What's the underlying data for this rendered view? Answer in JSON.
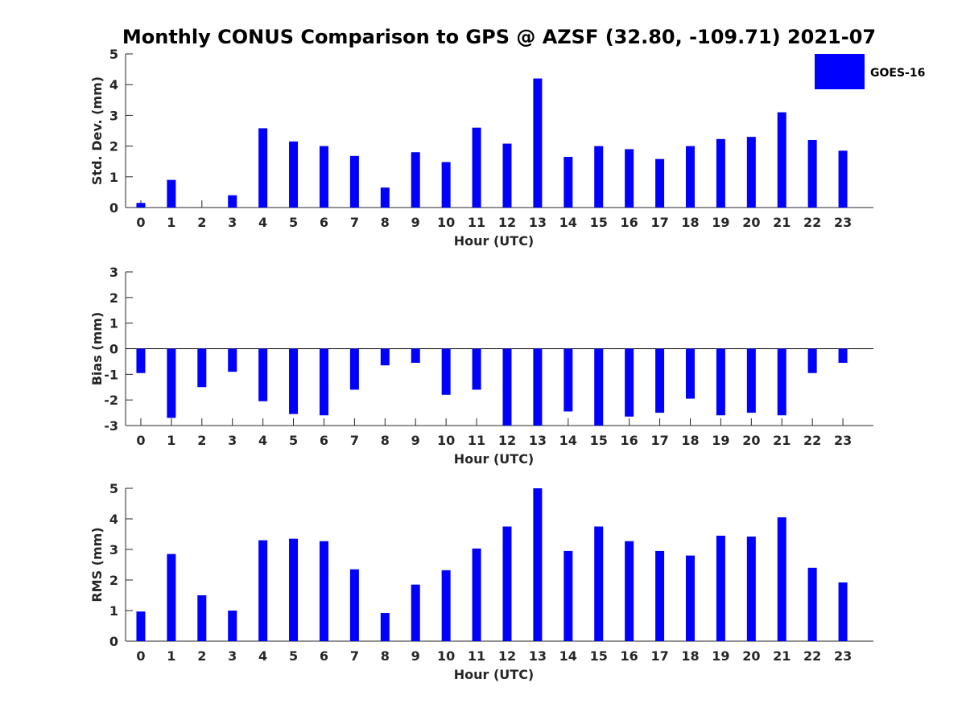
{
  "title": "Monthly CONUS Comparison to GPS @ AZSF (32.80, -109.71) 2021-07",
  "colors": {
    "bar": "#0000ff",
    "axis": "#262626",
    "background": "#ffffff"
  },
  "legend": {
    "label": "GOES-16",
    "placement": "top-right"
  },
  "chart_data": [
    {
      "type": "bar",
      "xlabel": "Hour (UTC)",
      "ylabel": "Std. Dev. (mm)",
      "ylim": [
        0,
        5
      ],
      "yticks": [
        0,
        1,
        2,
        3,
        4,
        5
      ],
      "x": [
        0,
        1,
        2,
        3,
        4,
        5,
        6,
        7,
        8,
        9,
        10,
        11,
        12,
        13,
        14,
        15,
        16,
        17,
        18,
        19,
        20,
        21,
        22,
        23
      ],
      "series": [
        {
          "name": "GOES-16",
          "values": [
            0.15,
            0.9,
            0,
            0.4,
            2.58,
            2.15,
            2.0,
            1.68,
            0.65,
            1.8,
            1.48,
            2.6,
            2.08,
            4.2,
            1.65,
            2.0,
            1.9,
            1.58,
            2.0,
            2.23,
            2.3,
            3.1,
            2.2,
            1.85
          ]
        }
      ]
    },
    {
      "type": "bar",
      "xlabel": "Hour (UTC)",
      "ylabel": "Bias (mm)",
      "ylim": [
        -3,
        3
      ],
      "yticks": [
        -3,
        -2,
        -1,
        0,
        1,
        2,
        3
      ],
      "x": [
        0,
        1,
        2,
        3,
        4,
        5,
        6,
        7,
        8,
        9,
        10,
        11,
        12,
        13,
        14,
        15,
        16,
        17,
        18,
        19,
        20,
        21,
        22,
        23
      ],
      "series": [
        {
          "name": "GOES-16",
          "values": [
            -0.95,
            -2.7,
            -1.5,
            -0.9,
            -2.05,
            -2.55,
            -2.6,
            -1.6,
            -0.65,
            -0.55,
            -1.8,
            -1.6,
            -3.0,
            -3.0,
            -2.45,
            -3.0,
            -2.65,
            -2.5,
            -1.95,
            -2.6,
            -2.5,
            -2.6,
            -0.95,
            -0.55
          ]
        }
      ]
    },
    {
      "type": "bar",
      "xlabel": "Hour (UTC)",
      "ylabel": "RMS (mm)",
      "ylim": [
        0,
        5
      ],
      "yticks": [
        0,
        1,
        2,
        3,
        4,
        5
      ],
      "x": [
        0,
        1,
        2,
        3,
        4,
        5,
        6,
        7,
        8,
        9,
        10,
        11,
        12,
        13,
        14,
        15,
        16,
        17,
        18,
        19,
        20,
        21,
        22,
        23
      ],
      "series": [
        {
          "name": "GOES-16",
          "values": [
            0.97,
            2.85,
            1.5,
            1.0,
            3.3,
            3.35,
            3.27,
            2.35,
            0.92,
            1.85,
            2.32,
            3.03,
            3.75,
            5.0,
            2.95,
            3.75,
            3.27,
            2.95,
            2.8,
            3.45,
            3.42,
            4.05,
            2.4,
            1.92
          ]
        }
      ]
    }
  ]
}
